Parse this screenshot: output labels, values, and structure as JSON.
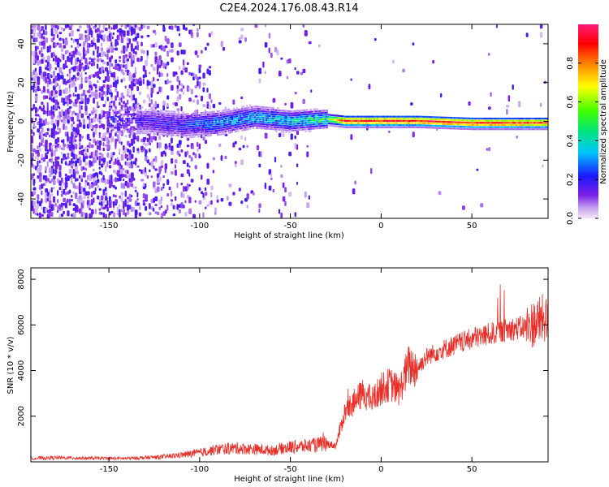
{
  "title": "C2E4.2024.176.08.43.R14",
  "chart_data": [
    {
      "type": "heatmap",
      "xlabel": "Height of straight line (km)",
      "ylabel": "Frequency (Hz)",
      "xlim": [
        -193,
        92
      ],
      "ylim": [
        -50,
        50
      ],
      "xticks": [
        -150,
        -100,
        -50,
        0,
        50
      ],
      "xtick_labels": [
        "-150",
        "-100",
        "-50",
        "0",
        "50"
      ],
      "yticks": [
        -40,
        -20,
        0,
        20,
        40
      ],
      "ytick_labels": [
        "-40",
        "-20",
        "0",
        "20",
        "40"
      ],
      "colorbar": {
        "label": "Normalized spectral amplitude",
        "range": [
          0.0,
          1.0
        ],
        "ticks": [
          0.0,
          0.2,
          0.4,
          0.6,
          0.8
        ],
        "tick_labels": [
          "0.0",
          "0.2",
          "0.4",
          "0.6",
          "0.8"
        ],
        "colormap": [
          "#f4e6fa",
          "#c8a8f0",
          "#7b1fe8",
          "#1a1aff",
          "#00c8ff",
          "#00e57a",
          "#3cff00",
          "#ffff00",
          "#ff8000",
          "#ff0000",
          "#ff1a7a"
        ]
      },
      "description_points": {
        "x": [
          -190,
          -150,
          -130,
          -110,
          -90,
          -70,
          -50,
          -30,
          -20,
          0,
          20,
          50,
          90
        ],
        "center_freq_hz": [
          0,
          0,
          0,
          -2,
          -1,
          2,
          0,
          1,
          0,
          0,
          0,
          -1,
          -1
        ],
        "peak_amplitude": [
          0.2,
          0.25,
          0.2,
          0.25,
          0.35,
          0.4,
          0.45,
          0.55,
          0.95,
          0.95,
          0.95,
          0.95,
          0.9
        ]
      }
    },
    {
      "type": "line",
      "xlabel": "Height of straight line (km)",
      "ylabel": "SNR (10 * v/v)",
      "xlim": [
        -193,
        92
      ],
      "ylim": [
        0,
        8500
      ],
      "xticks": [
        -150,
        -100,
        -50,
        0,
        50
      ],
      "xtick_labels": [
        "-150",
        "-100",
        "-50",
        "0",
        "50"
      ],
      "yticks": [
        2000,
        4000,
        6000,
        8000
      ],
      "ytick_labels": [
        "2000",
        "4000",
        "6000",
        "8000"
      ],
      "color": "#e8302a",
      "x": [
        -193,
        -180,
        -160,
        -140,
        -120,
        -110,
        -100,
        -90,
        -80,
        -70,
        -60,
        -50,
        -40,
        -30,
        -25,
        -20,
        -15,
        -10,
        -5,
        0,
        5,
        10,
        15,
        20,
        25,
        30,
        40,
        50,
        60,
        70,
        80,
        85,
        90,
        92
      ],
      "y": [
        150,
        180,
        160,
        150,
        220,
        300,
        400,
        550,
        600,
        550,
        500,
        650,
        700,
        800,
        700,
        2200,
        2600,
        3000,
        2700,
        3200,
        3400,
        3100,
        4200,
        4100,
        4600,
        4800,
        5100,
        5400,
        5600,
        5800,
        5900,
        6100,
        6300,
        6000
      ]
    }
  ]
}
